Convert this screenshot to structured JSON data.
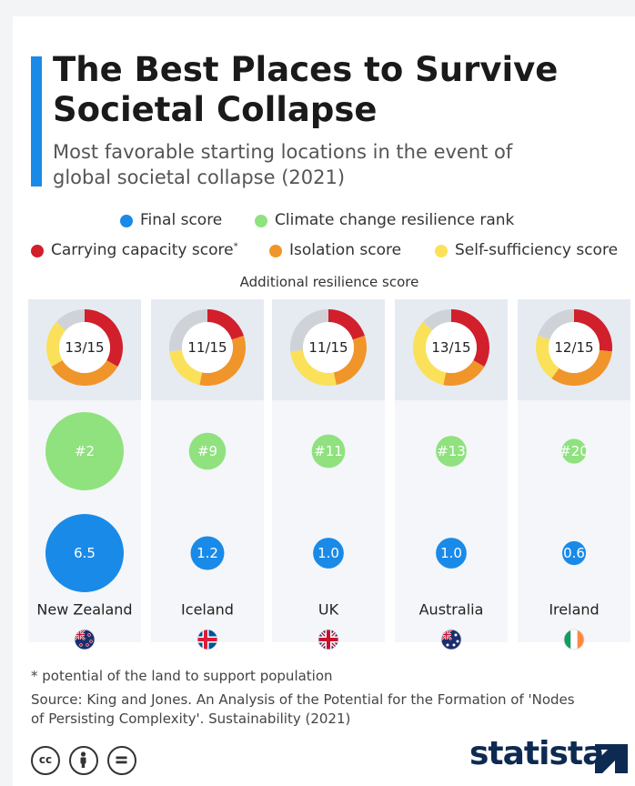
{
  "title": "The Best Places to Survive Societal Collapse",
  "subtitle": "Most favorable starting locations in the event of global societal collapse (2021)",
  "legend": {
    "final_score": "Final score",
    "climate_rank": "Climate change resilience rank",
    "carrying_capacity": "Carrying capacity score",
    "carrying_capacity_mark": "*",
    "isolation": "Isolation score",
    "self_sufficiency": "Self-sufficiency score"
  },
  "panel_label": "Additional resilience score",
  "footnote": "* potential of the land to support population",
  "source": "Source: King and Jones. An Analysis of the Potential for the Formation of 'Nodes of Persisting Complexity'. Sustainability (2021)",
  "brand": "statista",
  "colors": {
    "final_score": "#1a8ae8",
    "climate_rank": "#8fe27e",
    "carrying_capacity": "#d11f2b",
    "isolation": "#f0952a",
    "self_sufficiency": "#fbe159",
    "remainder": "#cfd3d8",
    "accent": "#1a8ae8"
  },
  "icons": [
    "cc-license-icon",
    "attribution-icon",
    "no-derivatives-icon",
    "flag-icon"
  ],
  "chart_data": {
    "type": "bubble-donut",
    "categories": [
      "New Zealand",
      "Iceland",
      "UK",
      "Australia",
      "Ireland"
    ],
    "flags": [
      "nz",
      "is",
      "uk",
      "au",
      "ie"
    ],
    "resilience_total_labels": [
      "13/15",
      "11/15",
      "11/15",
      "13/15",
      "12/15"
    ],
    "resilience_max": 15,
    "carrying_capacity": [
      5,
      3,
      3,
      5,
      4
    ],
    "isolation": [
      5,
      5,
      4,
      3,
      5
    ],
    "self_sufficiency": [
      3,
      3,
      4,
      5,
      3
    ],
    "climate_rank": [
      2,
      9,
      11,
      13,
      20
    ],
    "climate_rank_labels": [
      "#2",
      "#9",
      "#11",
      "#13",
      "#20"
    ],
    "final_score": [
      6.5,
      1.2,
      1.0,
      1.0,
      0.6
    ],
    "final_score_labels": [
      "6.5",
      "1.2",
      "1.0",
      "1.0",
      "0.6"
    ]
  }
}
